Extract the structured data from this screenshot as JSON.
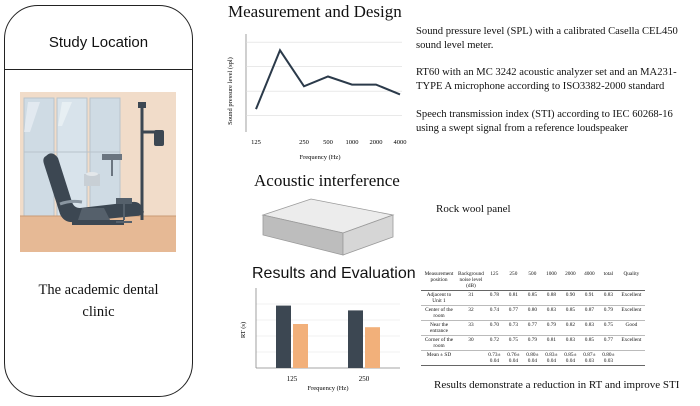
{
  "study": {
    "title": "Study Location",
    "clinic_line1": "The academic dental",
    "clinic_line2": "clinic"
  },
  "measurement": {
    "heading": "Measurement and Design",
    "desc1": "Sound pressure level (SPL) with a calibrated Casella CEL450 sound level meter.",
    "desc2": "RT60 with an MC 3242 acoustic analyzer set and an MA231-TYPE A microphone according to ISO3382-2000 standard",
    "desc3": "Speech transmission index (STI) according to IEC 60268-16 using a swept signal from a reference loudspeaker"
  },
  "acoustic": {
    "heading": "Acoustic interference",
    "panel_label": "Rock wool panel"
  },
  "results": {
    "heading": "Results and Evaluation",
    "conclusion": "Results demonstrate a reduction in RT and improve STI"
  },
  "chart_data": [
    {
      "type": "line",
      "x": [
        "125",
        "",
        "250",
        "500",
        "1000",
        "2000",
        "4000"
      ],
      "values": [
        34,
        70,
        48,
        54,
        49,
        49,
        43
      ],
      "xlabel": "Frequency (Hz)",
      "ylabel": "Sound pressure level (spl)",
      "series_color": "#2b3a4a",
      "grid": true
    },
    {
      "type": "bar",
      "categories": [
        "125",
        "250"
      ],
      "series": [
        {
          "values": [
            0.78,
            0.72
          ],
          "color": "#3c4752"
        },
        {
          "values": [
            0.55,
            0.51
          ],
          "color": "#f2b07a"
        }
      ],
      "xlabel": "Frequency (Hz)",
      "ylabel": "RT (s)",
      "grid": true
    }
  ],
  "table": {
    "headers": [
      "Measurement position",
      "Background noise level (dB)",
      "125",
      "250",
      "500",
      "1000",
      "2000",
      "4000",
      "total",
      "Quality"
    ],
    "rows": [
      [
        "Adjacent to Unit 1",
        "31",
        "0.78",
        "0.81",
        "0.85",
        "0.88",
        "0.90",
        "0.91",
        "0.83",
        "Excellent"
      ],
      [
        "Center of the room",
        "32",
        "0.74",
        "0.77",
        "0.80",
        "0.83",
        "0.85",
        "0.87",
        "0.79",
        "Excellent"
      ],
      [
        "Near the entrance",
        "33",
        "0.70",
        "0.73",
        "0.77",
        "0.79",
        "0.82",
        "0.83",
        "0.75",
        "Good"
      ],
      [
        "Corner of the room",
        "30",
        "0.72",
        "0.75",
        "0.79",
        "0.81",
        "0.83",
        "0.85",
        "0.77",
        "Excellent"
      ]
    ],
    "footer": [
      "Mean ± SD",
      "",
      "0.73± 0.04",
      "0.76± 0.04",
      "0.80± 0.04",
      "0.83± 0.04",
      "0.85± 0.04",
      "0.87± 0.03",
      "0.80± 0.03",
      ""
    ]
  }
}
